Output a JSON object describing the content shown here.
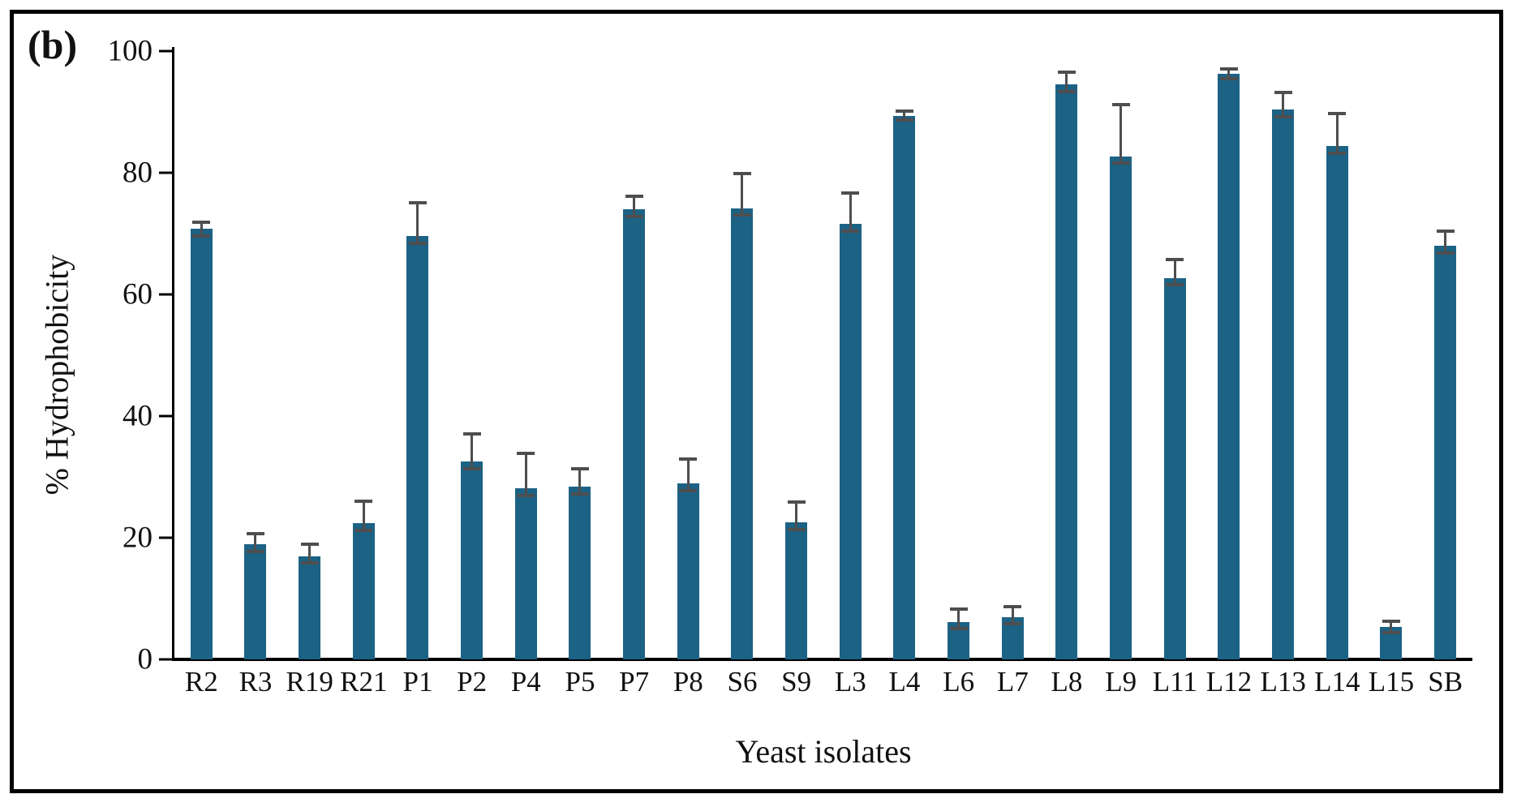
{
  "panel_label": "(b)",
  "chart_data": {
    "type": "bar",
    "title": "",
    "xlabel": "Yeast isolates",
    "ylabel": "% Hydrophobicity",
    "categories": [
      "R2",
      "R3",
      "R19",
      "R21",
      "P1",
      "P2",
      "P4",
      "P5",
      "P7",
      "P8",
      "S6",
      "S9",
      "L3",
      "L4",
      "L6",
      "L7",
      "L8",
      "L9",
      "L11",
      "L12",
      "L13",
      "L14",
      "L15",
      "SB"
    ],
    "values": [
      70.8,
      18.9,
      17.0,
      22.4,
      69.6,
      32.5,
      28.1,
      28.4,
      74.0,
      28.9,
      74.2,
      22.5,
      71.6,
      89.4,
      6.2,
      7.0,
      94.5,
      82.7,
      62.7,
      96.3,
      90.4,
      84.4,
      5.3,
      68.0
    ],
    "errors": [
      1.4,
      2.0,
      2.2,
      3.9,
      5.7,
      4.9,
      6.0,
      3.2,
      2.4,
      4.3,
      6.0,
      3.7,
      5.4,
      1.0,
      2.3,
      2.0,
      2.3,
      8.8,
      3.3,
      1.1,
      3.1,
      5.6,
      1.2,
      2.7
    ],
    "yticks": [
      0,
      20,
      40,
      60,
      80,
      100
    ],
    "ylim": [
      0,
      100
    ],
    "grid": false,
    "legend": null,
    "bar_color": "#1c6285",
    "error_color": "#4e4e50",
    "axis_color": "#000000",
    "background_color": "#ffffff"
  }
}
